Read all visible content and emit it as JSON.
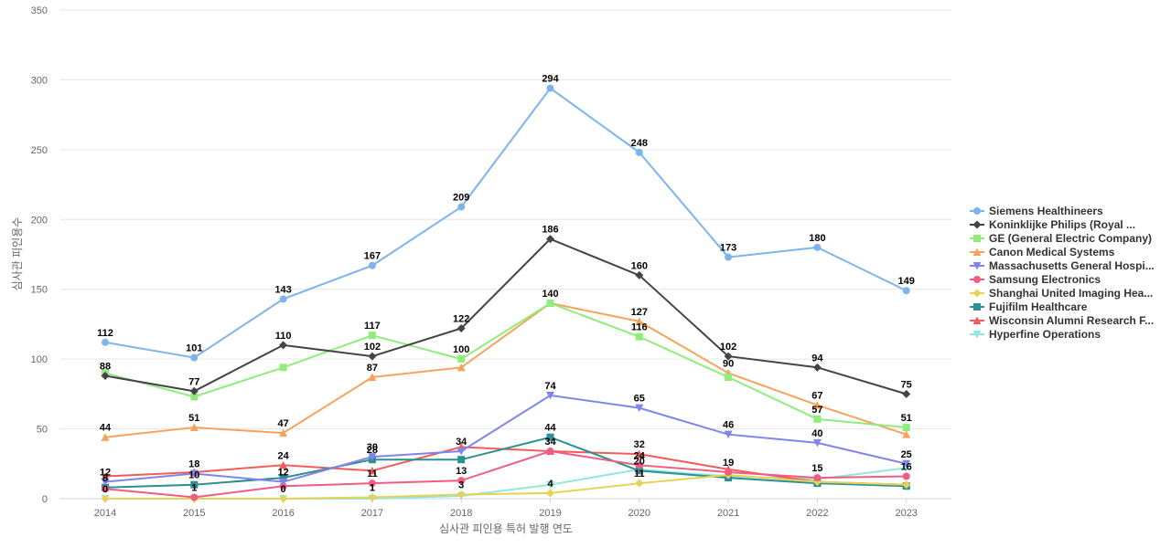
{
  "chart_data": {
    "type": "line",
    "title": "",
    "xlabel": "심사관 피인용 특허 발행 연도",
    "ylabel": "심사관 피인용수",
    "ylim": [
      0,
      350
    ],
    "yticks": [
      0,
      50,
      100,
      150,
      200,
      250,
      300,
      350
    ],
    "grid": true,
    "legend_position": "right",
    "categories": [
      "2014",
      "2015",
      "2016",
      "2017",
      "2018",
      "2019",
      "2020",
      "2021",
      "2022",
      "2023"
    ],
    "series": [
      {
        "name": "Siemens Healthineers",
        "color": "#7cb5ec",
        "marker": "circle",
        "values": [
          112,
          101,
          143,
          167,
          209,
          294,
          248,
          173,
          180,
          149
        ],
        "labels": [
          true,
          true,
          true,
          true,
          true,
          true,
          true,
          true,
          true,
          true
        ]
      },
      {
        "name": "Koninklijke Philips (Royal ...",
        "color": "#434348",
        "marker": "diamond",
        "values": [
          88,
          77,
          110,
          102,
          122,
          186,
          160,
          102,
          94,
          75
        ],
        "labels": [
          true,
          true,
          true,
          true,
          true,
          true,
          true,
          true,
          true,
          true
        ]
      },
      {
        "name": "GE (General Electric Company)",
        "color": "#90ed7d",
        "marker": "square",
        "values": [
          90,
          73,
          94,
          117,
          100,
          140,
          116,
          87,
          57,
          51
        ],
        "labels": [
          false,
          false,
          false,
          true,
          true,
          true,
          true,
          false,
          true,
          true
        ]
      },
      {
        "name": "Canon Medical Systems",
        "color": "#f7a35c",
        "marker": "triangle",
        "values": [
          44,
          51,
          47,
          87,
          94,
          140,
          127,
          90,
          67,
          46
        ],
        "labels": [
          true,
          true,
          true,
          true,
          false,
          false,
          true,
          true,
          true,
          false
        ]
      },
      {
        "name": "Massachusetts General Hospi...",
        "color": "#8085e9",
        "marker": "triangle-down",
        "values": [
          12,
          18,
          12,
          30,
          34,
          74,
          65,
          46,
          40,
          25
        ],
        "labels": [
          true,
          true,
          true,
          true,
          true,
          true,
          true,
          true,
          true,
          true
        ]
      },
      {
        "name": "Samsung Electronics",
        "color": "#f15c80",
        "marker": "circle",
        "values": [
          7,
          1,
          9,
          11,
          13,
          34,
          24,
          19,
          15,
          16
        ],
        "labels": [
          false,
          true,
          false,
          true,
          true,
          true,
          true,
          true,
          true,
          true
        ]
      },
      {
        "name": "Shanghai United Imaging Hea...",
        "color": "#e4d354",
        "marker": "diamond",
        "values": [
          0,
          0,
          0,
          1,
          3,
          4,
          11,
          17,
          12,
          10
        ],
        "labels": [
          true,
          false,
          true,
          true,
          true,
          true,
          true,
          false,
          false,
          false
        ]
      },
      {
        "name": "Fujifilm Healthcare",
        "color": "#2b908f",
        "marker": "square",
        "values": [
          8,
          10,
          15,
          28,
          28,
          44,
          20,
          15,
          11,
          9
        ],
        "labels": [
          true,
          true,
          false,
          true,
          false,
          true,
          true,
          false,
          false,
          false
        ]
      },
      {
        "name": "Wisconsin Alumni Research F...",
        "color": "#f45b5b",
        "marker": "triangle",
        "values": [
          16,
          19,
          24,
          20,
          37,
          34,
          32,
          21,
          12,
          10
        ],
        "labels": [
          false,
          false,
          true,
          false,
          false,
          false,
          true,
          false,
          false,
          false
        ]
      },
      {
        "name": "Hyperfine Operations",
        "color": "#91e8e1",
        "marker": "triangle-down",
        "values": [
          0,
          0,
          0,
          0,
          2,
          10,
          21,
          16,
          14,
          22
        ],
        "labels": [
          false,
          false,
          false,
          false,
          false,
          false,
          false,
          false,
          false,
          false
        ]
      }
    ]
  }
}
